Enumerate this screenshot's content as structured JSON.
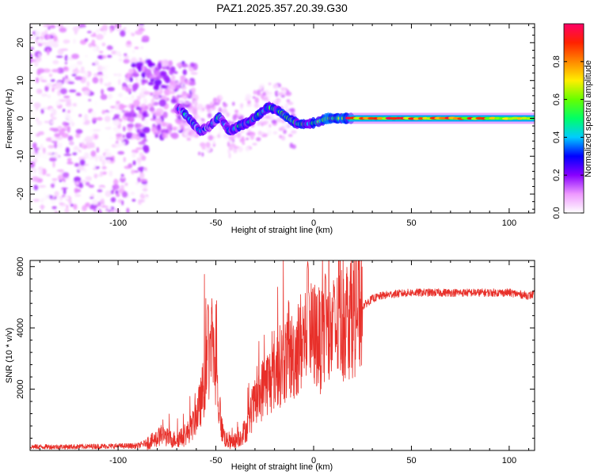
{
  "title": "PAZ1.2025.357.20.39.G30",
  "chart_data": [
    {
      "type": "heatmap",
      "xlabel": "Height of straight line (km)",
      "ylabel": "Frequency (Hz)",
      "xlim": [
        -145,
        113
      ],
      "ylim": [
        -25,
        25
      ],
      "xticks": [
        -100,
        -50,
        0,
        50,
        100
      ],
      "yticks": [
        -20,
        -10,
        0,
        10,
        20
      ],
      "colorbar": {
        "label": "Normalized spectral amplitude",
        "range": [
          0.0,
          1.0
        ],
        "ticks": [
          0.0,
          0.2,
          0.4,
          0.6,
          0.8
        ],
        "colors": [
          "#ffffff",
          "#ee99ff",
          "#8800ff",
          "#0000ff",
          "#00ccff",
          "#00ff66",
          "#66ff00",
          "#ffee00",
          "#ff8800",
          "#ff2200",
          "#ff0066"
        ]
      },
      "center_trace": {
        "x": [
          -68,
          -63,
          -58,
          -53,
          -48,
          -43,
          -38,
          -33,
          -28,
          -23,
          -18,
          -13,
          -8,
          -3,
          2,
          7,
          15,
          30,
          60,
          113
        ],
        "y": [
          2.5,
          -0.5,
          -3.5,
          -2,
          0.5,
          -3.5,
          -2,
          -1,
          1,
          3,
          2,
          0,
          -1.5,
          -1.5,
          -1,
          0,
          0,
          0,
          0,
          0
        ]
      },
      "noise_region": {
        "x_range": [
          -145,
          -85
        ],
        "y_range": [
          -25,
          25
        ]
      },
      "transition_region": {
        "x_range": [
          -95,
          -60
        ],
        "y_range": [
          -5,
          15
        ]
      }
    },
    {
      "type": "line",
      "xlabel": "Height of straight line (km)",
      "ylabel": "SNR (10 * v/v)",
      "xlim": [
        -145,
        113
      ],
      "ylim": [
        0,
        6200
      ],
      "xticks": [
        -100,
        -50,
        0,
        50,
        100
      ],
      "yticks": [
        2000,
        4000,
        6000
      ],
      "color": "#e8302a",
      "series": [
        {
          "name": "SNR",
          "x": [
            -145,
            -125,
            -105,
            -90,
            -82,
            -78,
            -72,
            -66,
            -62,
            -58,
            -55,
            -53,
            -52,
            -51,
            -49,
            -47,
            -45,
            -42,
            -38,
            -34,
            -31,
            -28,
            -25,
            -22,
            -18,
            -14,
            -10,
            -8,
            -6,
            -4,
            -3,
            -2,
            -1,
            1,
            4,
            8,
            12,
            16,
            20,
            25,
            30,
            35,
            40,
            50,
            60,
            70,
            80,
            90,
            100,
            105,
            110,
            113
          ],
          "y": [
            120,
            120,
            140,
            150,
            320,
            500,
            350,
            450,
            800,
            1500,
            2500,
            3200,
            3400,
            2800,
            1800,
            700,
            350,
            250,
            400,
            750,
            1400,
            1700,
            2200,
            2300,
            2700,
            3000,
            3100,
            3400,
            3600,
            3700,
            4000,
            3900,
            3700,
            3800,
            3500,
            3700,
            4000,
            4300,
            4500,
            4700,
            4950,
            5050,
            5100,
            5150,
            5150,
            5150,
            5150,
            5150,
            5150,
            5100,
            5050,
            5100
          ]
        }
      ],
      "spikes": [
        {
          "x": -54,
          "y": 4800
        },
        {
          "x": -53,
          "y": 3800
        },
        {
          "x": -52,
          "y": 3600
        },
        {
          "x": -3,
          "y": 6200
        },
        {
          "x": -2.5,
          "y": 5200
        },
        {
          "x": 6,
          "y": 5800
        },
        {
          "x": 10.5,
          "y": 5200
        },
        {
          "x": 13,
          "y": 4700
        }
      ]
    }
  ]
}
